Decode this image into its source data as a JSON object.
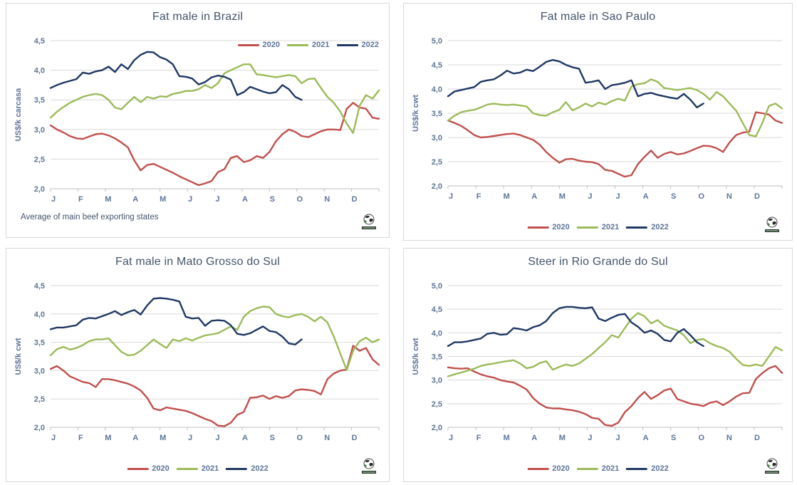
{
  "page": {
    "background": "#ffffff"
  },
  "palette": {
    "series_2020": "#C0504D",
    "series_2021": "#9BBB59",
    "series_2022": "#1F3864",
    "gridline": "#D9D9D9",
    "axis_line": "#BFBFBF",
    "axis_text": "#5E7599",
    "title_text": "#44546A",
    "panel_border": "#D9D9D9"
  },
  "icons": {
    "corner_logo": "globe-logo"
  },
  "chart_data": [
    {
      "type": "line",
      "title": "Fat male in Brazil",
      "ylabel": "US$/k carcasa",
      "xlabel": "",
      "x_unit": "weekly",
      "x_categories": [
        "J",
        "F",
        "M",
        "A",
        "M",
        "J",
        "J",
        "A",
        "S",
        "O",
        "N",
        "D"
      ],
      "ylim": [
        2.0,
        4.5
      ],
      "ytick_labels": [
        "4,5",
        "4,0",
        "3,5",
        "3,0",
        "2,5",
        "2,0"
      ],
      "grid": true,
      "legend_position": "top-right",
      "footnote": "Average  of main beef exporting states",
      "series": [
        {
          "name": "2020",
          "color": "#C0504D",
          "values": [
            3.07,
            3.0,
            2.95,
            2.89,
            2.85,
            2.84,
            2.88,
            2.92,
            2.93,
            2.9,
            2.85,
            2.78,
            2.7,
            2.48,
            2.31,
            2.4,
            2.42,
            2.37,
            2.32,
            2.27,
            2.21,
            2.16,
            2.11,
            2.06,
            2.09,
            2.13,
            2.28,
            2.33,
            2.52,
            2.55,
            2.45,
            2.48,
            2.55,
            2.52,
            2.62,
            2.8,
            2.92,
            3.0,
            2.96,
            2.89,
            2.87,
            2.92,
            2.97,
            3.0,
            3.0,
            2.99,
            3.35,
            3.45,
            3.37,
            3.35,
            3.2,
            3.18
          ]
        },
        {
          "name": "2021",
          "color": "#9BBB59",
          "values": [
            3.2,
            3.3,
            3.38,
            3.45,
            3.5,
            3.55,
            3.58,
            3.6,
            3.58,
            3.5,
            3.37,
            3.34,
            3.45,
            3.55,
            3.46,
            3.55,
            3.52,
            3.56,
            3.55,
            3.6,
            3.62,
            3.65,
            3.65,
            3.68,
            3.75,
            3.7,
            3.78,
            3.95,
            4.0,
            4.05,
            4.1,
            4.1,
            3.93,
            3.92,
            3.9,
            3.88,
            3.9,
            3.92,
            3.9,
            3.78,
            3.85,
            3.86,
            3.7,
            3.55,
            3.45,
            3.3,
            3.1,
            2.94,
            3.4,
            3.58,
            3.52,
            3.66
          ]
        },
        {
          "name": "2022",
          "color": "#1F3864",
          "values": [
            3.7,
            3.75,
            3.79,
            3.82,
            3.85,
            3.96,
            3.94,
            3.98,
            4.0,
            4.06,
            3.97,
            4.1,
            4.02,
            4.17,
            4.26,
            4.31,
            4.3,
            4.22,
            4.18,
            4.1,
            3.9,
            3.89,
            3.86,
            3.76,
            3.8,
            3.88,
            3.91,
            3.89,
            3.84,
            3.58,
            3.63,
            3.72,
            3.68,
            3.64,
            3.61,
            3.63,
            3.75,
            3.68,
            3.55,
            3.5
          ]
        }
      ]
    },
    {
      "type": "line",
      "title": "Fat male in Sao Paulo",
      "ylabel": "US$/k cwt",
      "xlabel": "",
      "x_unit": "weekly",
      "x_categories": [
        "J",
        "F",
        "M",
        "A",
        "M",
        "J",
        "J",
        "A",
        "S",
        "O",
        "N",
        "D"
      ],
      "ylim": [
        2.0,
        5.0
      ],
      "ytick_labels": [
        "5,0",
        "4,5",
        "4,0",
        "3,5",
        "3,0",
        "2,5",
        "2,0"
      ],
      "grid": true,
      "legend_position": "bottom",
      "footnote": "",
      "series": [
        {
          "name": "2020",
          "color": "#C0504D",
          "values": [
            3.35,
            3.3,
            3.24,
            3.15,
            3.05,
            3.0,
            3.01,
            3.03,
            3.05,
            3.07,
            3.08,
            3.05,
            3.0,
            2.95,
            2.85,
            2.7,
            2.58,
            2.48,
            2.55,
            2.56,
            2.52,
            2.5,
            2.49,
            2.45,
            2.33,
            2.31,
            2.25,
            2.19,
            2.22,
            2.45,
            2.6,
            2.73,
            2.58,
            2.66,
            2.7,
            2.65,
            2.67,
            2.72,
            2.78,
            2.83,
            2.82,
            2.78,
            2.7,
            2.9,
            3.05,
            3.1,
            3.12,
            3.52,
            3.5,
            3.47,
            3.35,
            3.3
          ]
        },
        {
          "name": "2021",
          "color": "#9BBB59",
          "values": [
            3.35,
            3.45,
            3.52,
            3.55,
            3.57,
            3.62,
            3.68,
            3.7,
            3.68,
            3.67,
            3.68,
            3.66,
            3.64,
            3.5,
            3.46,
            3.45,
            3.52,
            3.57,
            3.73,
            3.56,
            3.62,
            3.7,
            3.64,
            3.72,
            3.68,
            3.75,
            3.8,
            3.76,
            4.05,
            4.1,
            4.12,
            4.2,
            4.15,
            4.02,
            4.0,
            3.98,
            4.0,
            4.02,
            3.98,
            3.9,
            3.78,
            3.94,
            3.85,
            3.7,
            3.55,
            3.3,
            3.05,
            3.02,
            3.3,
            3.65,
            3.7,
            3.6
          ]
        },
        {
          "name": "2022",
          "color": "#1F3864",
          "values": [
            3.85,
            3.95,
            3.98,
            4.01,
            4.04,
            4.15,
            4.18,
            4.2,
            4.28,
            4.38,
            4.32,
            4.34,
            4.4,
            4.37,
            4.46,
            4.56,
            4.6,
            4.57,
            4.5,
            4.45,
            4.42,
            4.13,
            4.15,
            4.18,
            4.0,
            4.08,
            4.1,
            4.13,
            4.18,
            3.85,
            3.9,
            3.92,
            3.88,
            3.85,
            3.82,
            3.8,
            3.9,
            3.78,
            3.62,
            3.7
          ]
        }
      ]
    },
    {
      "type": "line",
      "title": "Fat male in Mato Grosso do Sul",
      "ylabel": "US$/k cwt",
      "xlabel": "",
      "x_unit": "weekly",
      "x_categories": [
        "J",
        "F",
        "M",
        "A",
        "M",
        "J",
        "J",
        "A",
        "S",
        "O",
        "N",
        "D"
      ],
      "ylim": [
        2.0,
        4.5
      ],
      "ytick_labels": [
        "4,5",
        "4,0",
        "3,5",
        "3,0",
        "2,5",
        "2,0"
      ],
      "grid": true,
      "legend_position": "bottom",
      "footnote": "",
      "series": [
        {
          "name": "2020",
          "color": "#C0504D",
          "values": [
            3.03,
            3.08,
            3.0,
            2.9,
            2.85,
            2.8,
            2.78,
            2.71,
            2.85,
            2.85,
            2.83,
            2.8,
            2.77,
            2.72,
            2.65,
            2.52,
            2.33,
            2.3,
            2.35,
            2.33,
            2.31,
            2.29,
            2.25,
            2.2,
            2.15,
            2.11,
            2.03,
            2.02,
            2.08,
            2.22,
            2.27,
            2.52,
            2.53,
            2.56,
            2.5,
            2.55,
            2.52,
            2.55,
            2.65,
            2.67,
            2.66,
            2.64,
            2.58,
            2.85,
            2.95,
            3.0,
            3.02,
            3.44,
            3.35,
            3.4,
            3.2,
            3.1
          ]
        },
        {
          "name": "2021",
          "color": "#9BBB59",
          "values": [
            3.27,
            3.38,
            3.42,
            3.37,
            3.4,
            3.45,
            3.52,
            3.55,
            3.55,
            3.57,
            3.45,
            3.33,
            3.27,
            3.28,
            3.35,
            3.45,
            3.55,
            3.47,
            3.4,
            3.55,
            3.52,
            3.57,
            3.53,
            3.58,
            3.62,
            3.64,
            3.66,
            3.72,
            3.78,
            3.72,
            3.95,
            4.05,
            4.1,
            4.13,
            4.12,
            4.0,
            3.96,
            3.94,
            3.98,
            4.0,
            3.95,
            3.87,
            3.95,
            3.85,
            3.6,
            3.3,
            3.01,
            3.35,
            3.52,
            3.58,
            3.5,
            3.55
          ]
        },
        {
          "name": "2022",
          "color": "#1F3864",
          "values": [
            3.73,
            3.76,
            3.76,
            3.78,
            3.8,
            3.9,
            3.93,
            3.92,
            3.96,
            4.0,
            4.05,
            3.98,
            4.03,
            4.07,
            3.99,
            4.15,
            4.27,
            4.28,
            4.27,
            4.25,
            4.22,
            3.95,
            3.92,
            3.93,
            3.79,
            3.88,
            3.89,
            3.88,
            3.8,
            3.65,
            3.63,
            3.66,
            3.72,
            3.78,
            3.7,
            3.68,
            3.6,
            3.48,
            3.46,
            3.55
          ]
        }
      ]
    },
    {
      "type": "line",
      "title": "Steer  in Rio Grande do Sul",
      "ylabel": "US$/k cwt",
      "xlabel": "",
      "x_unit": "weekly",
      "x_categories": [
        "J",
        "F",
        "M",
        "A",
        "M",
        "J",
        "J",
        "A",
        "S",
        "O",
        "N",
        "D"
      ],
      "ylim": [
        2.0,
        5.0
      ],
      "ytick_labels": [
        "5,0",
        "4,5",
        "4,0",
        "3,5",
        "3,0",
        "2,5",
        "2,0"
      ],
      "grid": true,
      "legend_position": "bottom",
      "footnote": "",
      "series": [
        {
          "name": "2020",
          "color": "#C0504D",
          "values": [
            3.27,
            3.25,
            3.24,
            3.25,
            3.18,
            3.12,
            3.08,
            3.05,
            3.0,
            2.97,
            2.95,
            2.88,
            2.8,
            2.62,
            2.5,
            2.42,
            2.4,
            2.4,
            2.38,
            2.36,
            2.33,
            2.28,
            2.2,
            2.18,
            2.05,
            2.03,
            2.1,
            2.32,
            2.45,
            2.62,
            2.75,
            2.6,
            2.68,
            2.78,
            2.82,
            2.6,
            2.55,
            2.5,
            2.48,
            2.45,
            2.52,
            2.55,
            2.47,
            2.55,
            2.65,
            2.72,
            2.73,
            3.02,
            3.15,
            3.25,
            3.3,
            3.15
          ]
        },
        {
          "name": "2021",
          "color": "#9BBB59",
          "values": [
            3.08,
            3.12,
            3.16,
            3.2,
            3.24,
            3.3,
            3.33,
            3.35,
            3.38,
            3.4,
            3.42,
            3.35,
            3.25,
            3.28,
            3.36,
            3.4,
            3.22,
            3.28,
            3.33,
            3.3,
            3.35,
            3.45,
            3.55,
            3.68,
            3.8,
            3.95,
            3.9,
            4.1,
            4.3,
            4.42,
            4.35,
            4.2,
            4.27,
            4.15,
            4.1,
            4.05,
            3.95,
            3.78,
            3.85,
            3.87,
            3.78,
            3.72,
            3.68,
            3.6,
            3.45,
            3.32,
            3.3,
            3.33,
            3.3,
            3.5,
            3.7,
            3.63
          ]
        },
        {
          "name": "2022",
          "color": "#1F3864",
          "values": [
            3.72,
            3.8,
            3.8,
            3.82,
            3.85,
            3.88,
            3.98,
            4.0,
            3.96,
            3.97,
            4.1,
            4.08,
            4.05,
            4.12,
            4.16,
            4.25,
            4.42,
            4.52,
            4.55,
            4.55,
            4.53,
            4.52,
            4.54,
            4.3,
            4.25,
            4.32,
            4.38,
            4.4,
            4.22,
            4.13,
            4.0,
            4.05,
            3.98,
            3.85,
            3.82,
            4.0,
            4.08,
            3.95,
            3.8,
            3.72
          ]
        }
      ]
    }
  ]
}
